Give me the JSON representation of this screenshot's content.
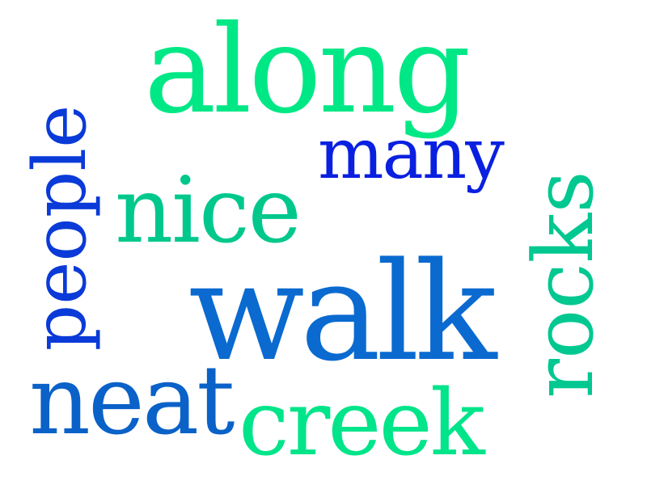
{
  "word_cloud": {
    "words": {
      "along": {
        "text": "along",
        "color": "#00E886"
      },
      "many": {
        "text": "many",
        "color": "#0A20E0"
      },
      "nice": {
        "text": "nice",
        "color": "#00C88C"
      },
      "people": {
        "text": "people",
        "color": "#0A3AD8"
      },
      "walk": {
        "text": "walk",
        "color": "#0A6AD0"
      },
      "rocks": {
        "text": "rocks",
        "color": "#00C890"
      },
      "neat": {
        "text": "neat",
        "color": "#0A62C8"
      },
      "creek": {
        "text": "creek",
        "color": "#00E48A"
      }
    }
  }
}
